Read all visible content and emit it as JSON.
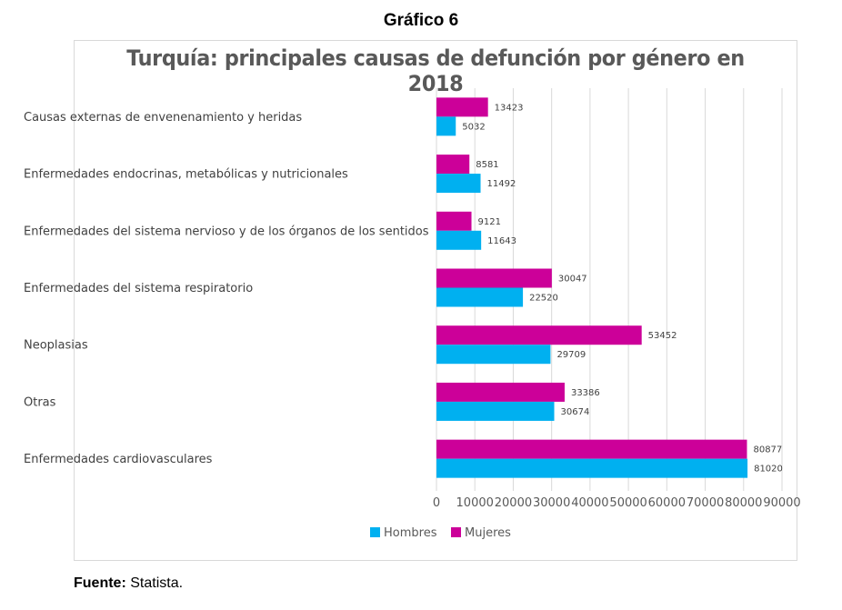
{
  "figure_label": "Gráfico 6",
  "source": {
    "label": "Fuente:",
    "text": " Statista."
  },
  "chart_data": {
    "type": "bar",
    "orientation": "horizontal",
    "title": "Turquía: principales causas de defunción por género en 2018",
    "xlabel": "",
    "ylabel": "",
    "xlim": [
      0,
      90000
    ],
    "xticks": [
      0,
      10000,
      20000,
      30000,
      40000,
      50000,
      60000,
      70000,
      80000,
      90000
    ],
    "grid": true,
    "legend_position": "bottom",
    "categories": [
      "Causas externas de envenenamiento y heridas",
      "Enfermedades endocrinas, metabólicas y nutricionales",
      "Enfermedades del sistema nervioso y de los órganos de los sentidos",
      "Enfermedades del sistema respiratorio",
      "Neoplasias",
      "Otras",
      "Enfermedades cardiovasculares"
    ],
    "series": [
      {
        "name": "Hombres",
        "color": "#00b0f0",
        "values": [
          5032,
          11492,
          11643,
          22520,
          29709,
          30674,
          81020
        ]
      },
      {
        "name": "Mujeres",
        "color": "#cc0099",
        "values": [
          13423,
          8581,
          9121,
          30047,
          53452,
          33386,
          80877
        ]
      }
    ]
  }
}
